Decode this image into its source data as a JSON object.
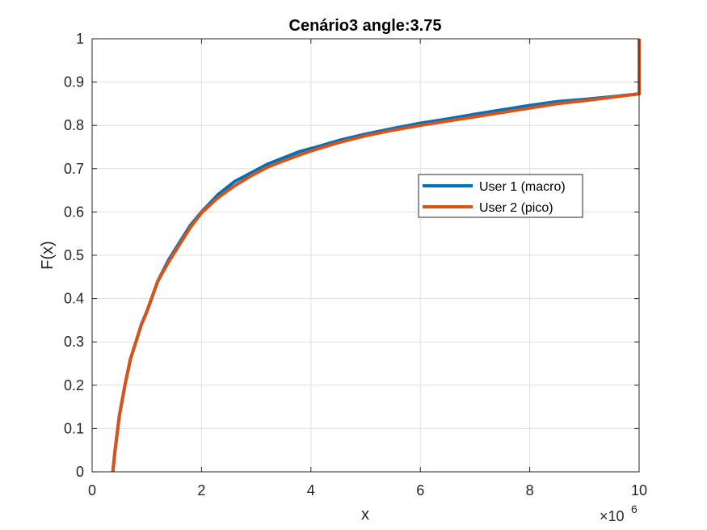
{
  "chart_data": {
    "type": "line",
    "title": "Cenário3 angle:3.75",
    "xlabel": "x",
    "ylabel": "F(x)",
    "x_exponent_base": "×10",
    "x_exponent_power": "6",
    "xlim": [
      0,
      10
    ],
    "ylim": [
      0,
      1
    ],
    "x_ticks": [
      0,
      2,
      4,
      6,
      8,
      10
    ],
    "x_tick_labels": [
      "0",
      "2",
      "4",
      "6",
      "8",
      "10"
    ],
    "y_ticks": [
      0,
      0.1,
      0.2,
      0.3,
      0.4,
      0.5,
      0.6,
      0.7,
      0.8,
      0.9,
      1
    ],
    "y_tick_labels": [
      "0",
      "0.1",
      "0.2",
      "0.3",
      "0.4",
      "0.5",
      "0.6",
      "0.7",
      "0.8",
      "0.9",
      "1"
    ],
    "grid": true,
    "legend_position": "inside-right",
    "series": [
      {
        "name": "User 1 (macro)",
        "color": "#0072BD",
        "x": [
          0.38,
          0.42,
          0.5,
          0.6,
          0.7,
          0.8,
          0.9,
          1.0,
          1.2,
          1.4,
          1.6,
          1.8,
          2.0,
          2.3,
          2.6,
          2.9,
          3.2,
          3.5,
          3.8,
          4.1,
          4.5,
          5.0,
          5.5,
          6.0,
          6.5,
          7.0,
          7.5,
          8.0,
          8.5,
          9.0,
          9.5,
          10.0,
          10.0
        ],
        "y": [
          0.0,
          0.05,
          0.13,
          0.2,
          0.26,
          0.3,
          0.34,
          0.37,
          0.44,
          0.49,
          0.53,
          0.57,
          0.6,
          0.64,
          0.67,
          0.69,
          0.71,
          0.725,
          0.74,
          0.75,
          0.765,
          0.78,
          0.793,
          0.805,
          0.815,
          0.826,
          0.836,
          0.846,
          0.855,
          0.86,
          0.866,
          0.873,
          1.0
        ]
      },
      {
        "name": "User 2 (pico)",
        "color": "#D95319",
        "x": [
          0.38,
          0.42,
          0.5,
          0.6,
          0.7,
          0.8,
          0.9,
          1.0,
          1.2,
          1.4,
          1.6,
          1.8,
          2.0,
          2.3,
          2.6,
          2.9,
          3.2,
          3.5,
          3.8,
          4.1,
          4.5,
          5.0,
          5.5,
          6.0,
          6.5,
          7.0,
          7.5,
          8.0,
          8.5,
          9.0,
          9.5,
          10.0,
          10.0
        ],
        "y": [
          0.0,
          0.05,
          0.13,
          0.2,
          0.26,
          0.3,
          0.34,
          0.37,
          0.44,
          0.485,
          0.525,
          0.565,
          0.598,
          0.633,
          0.66,
          0.683,
          0.703,
          0.718,
          0.732,
          0.745,
          0.76,
          0.776,
          0.789,
          0.8,
          0.81,
          0.82,
          0.83,
          0.84,
          0.85,
          0.857,
          0.865,
          0.873,
          1.0
        ]
      }
    ]
  }
}
